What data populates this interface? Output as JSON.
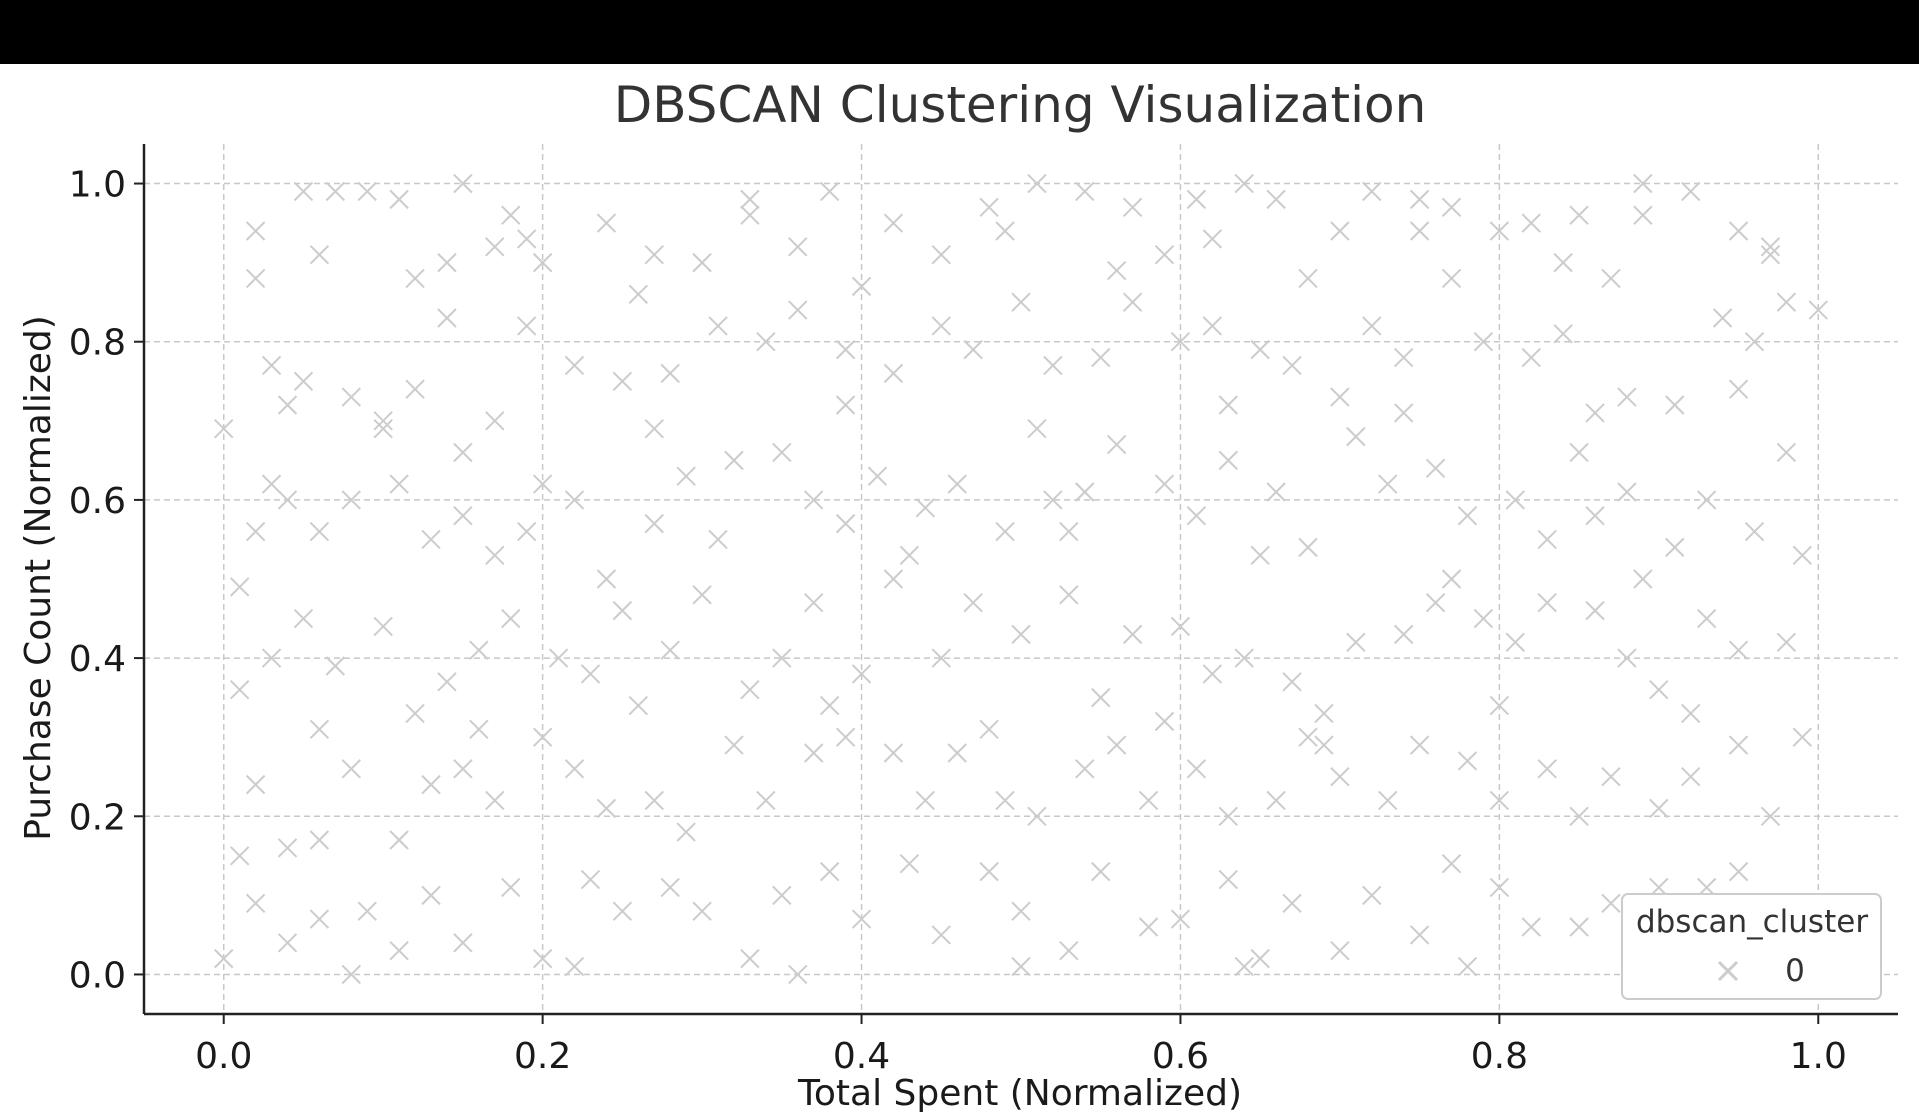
{
  "chart_data": {
    "type": "scatter",
    "title": "DBSCAN Clustering Visualization",
    "xlabel": "Total Spent (Normalized)",
    "ylabel": "Purchase Count (Normalized)",
    "xlim": [
      -0.05,
      1.05
    ],
    "ylim": [
      -0.05,
      1.05
    ],
    "xticks": [
      0.0,
      0.2,
      0.4,
      0.6,
      0.8,
      1.0
    ],
    "yticks": [
      0.0,
      0.2,
      0.4,
      0.6,
      0.8,
      1.0
    ],
    "xtick_labels": [
      "0.0",
      "0.2",
      "0.4",
      "0.6",
      "0.8",
      "1.0"
    ],
    "ytick_labels": [
      "0.0",
      "0.2",
      "0.4",
      "0.6",
      "0.8",
      "1.0"
    ],
    "grid": true,
    "marker": "x",
    "legend": {
      "title": "dbscan_cluster",
      "placement": "lower-right",
      "entries": [
        "0"
      ]
    },
    "series": [
      {
        "name": "0",
        "color": "#cccccc",
        "points": [
          [
            0.0,
            0.69
          ],
          [
            0.02,
            0.94
          ],
          [
            0.02,
            0.88
          ],
          [
            0.05,
            0.99
          ],
          [
            0.07,
            0.99
          ],
          [
            0.09,
            0.99
          ],
          [
            0.11,
            0.98
          ],
          [
            0.15,
            1.0
          ],
          [
            0.14,
            0.9
          ],
          [
            0.17,
            0.92
          ],
          [
            0.19,
            0.93
          ],
          [
            0.2,
            0.9
          ],
          [
            0.24,
            0.95
          ],
          [
            0.27,
            0.91
          ],
          [
            0.3,
            0.9
          ],
          [
            0.33,
            0.98
          ],
          [
            0.36,
            0.92
          ],
          [
            0.38,
            0.99
          ],
          [
            0.42,
            0.95
          ],
          [
            0.45,
            0.91
          ],
          [
            0.49,
            0.94
          ],
          [
            0.51,
            1.0
          ],
          [
            0.54,
            0.99
          ],
          [
            0.57,
            0.97
          ],
          [
            0.59,
            0.91
          ],
          [
            0.62,
            0.93
          ],
          [
            0.64,
            1.0
          ],
          [
            0.66,
            0.98
          ],
          [
            0.7,
            0.94
          ],
          [
            0.72,
            0.99
          ],
          [
            0.75,
            0.94
          ],
          [
            0.77,
            0.97
          ],
          [
            0.8,
            0.94
          ],
          [
            0.82,
            0.95
          ],
          [
            0.85,
            0.96
          ],
          [
            0.87,
            0.88
          ],
          [
            0.89,
            1.0
          ],
          [
            0.92,
            0.99
          ],
          [
            0.95,
            0.94
          ],
          [
            0.97,
            0.91
          ],
          [
            0.03,
            0.77
          ],
          [
            0.05,
            0.75
          ],
          [
            0.08,
            0.73
          ],
          [
            0.1,
            0.7
          ],
          [
            0.12,
            0.74
          ],
          [
            0.14,
            0.83
          ],
          [
            0.17,
            0.7
          ],
          [
            0.19,
            0.82
          ],
          [
            0.22,
            0.77
          ],
          [
            0.25,
            0.75
          ],
          [
            0.28,
            0.76
          ],
          [
            0.31,
            0.82
          ],
          [
            0.34,
            0.8
          ],
          [
            0.36,
            0.84
          ],
          [
            0.39,
            0.79
          ],
          [
            0.42,
            0.76
          ],
          [
            0.45,
            0.82
          ],
          [
            0.47,
            0.79
          ],
          [
            0.5,
            0.85
          ],
          [
            0.52,
            0.77
          ],
          [
            0.55,
            0.78
          ],
          [
            0.57,
            0.85
          ],
          [
            0.6,
            0.8
          ],
          [
            0.62,
            0.82
          ],
          [
            0.65,
            0.79
          ],
          [
            0.67,
            0.77
          ],
          [
            0.7,
            0.73
          ],
          [
            0.72,
            0.82
          ],
          [
            0.74,
            0.78
          ],
          [
            0.77,
            0.88
          ],
          [
            0.79,
            0.8
          ],
          [
            0.82,
            0.78
          ],
          [
            0.84,
            0.81
          ],
          [
            0.86,
            0.71
          ],
          [
            0.88,
            0.73
          ],
          [
            0.91,
            0.72
          ],
          [
            0.94,
            0.83
          ],
          [
            0.96,
            0.8
          ],
          [
            0.98,
            0.85
          ],
          [
            1.0,
            0.84
          ],
          [
            0.01,
            0.49
          ],
          [
            0.03,
            0.62
          ],
          [
            0.04,
            0.6
          ],
          [
            0.06,
            0.56
          ],
          [
            0.08,
            0.6
          ],
          [
            0.1,
            0.69
          ],
          [
            0.13,
            0.55
          ],
          [
            0.15,
            0.58
          ],
          [
            0.17,
            0.53
          ],
          [
            0.2,
            0.62
          ],
          [
            0.22,
            0.6
          ],
          [
            0.24,
            0.5
          ],
          [
            0.27,
            0.57
          ],
          [
            0.29,
            0.63
          ],
          [
            0.32,
            0.65
          ],
          [
            0.35,
            0.66
          ],
          [
            0.37,
            0.6
          ],
          [
            0.39,
            0.57
          ],
          [
            0.41,
            0.63
          ],
          [
            0.44,
            0.59
          ],
          [
            0.46,
            0.62
          ],
          [
            0.49,
            0.56
          ],
          [
            0.52,
            0.6
          ],
          [
            0.54,
            0.61
          ],
          [
            0.56,
            0.67
          ],
          [
            0.59,
            0.62
          ],
          [
            0.61,
            0.58
          ],
          [
            0.63,
            0.65
          ],
          [
            0.66,
            0.61
          ],
          [
            0.68,
            0.54
          ],
          [
            0.71,
            0.68
          ],
          [
            0.73,
            0.62
          ],
          [
            0.76,
            0.64
          ],
          [
            0.78,
            0.58
          ],
          [
            0.81,
            0.6
          ],
          [
            0.83,
            0.55
          ],
          [
            0.86,
            0.58
          ],
          [
            0.88,
            0.61
          ],
          [
            0.91,
            0.54
          ],
          [
            0.93,
            0.6
          ],
          [
            0.96,
            0.56
          ],
          [
            0.98,
            0.66
          ],
          [
            0.01,
            0.36
          ],
          [
            0.03,
            0.4
          ],
          [
            0.05,
            0.45
          ],
          [
            0.07,
            0.39
          ],
          [
            0.1,
            0.44
          ],
          [
            0.12,
            0.33
          ],
          [
            0.14,
            0.37
          ],
          [
            0.16,
            0.41
          ],
          [
            0.18,
            0.45
          ],
          [
            0.21,
            0.4
          ],
          [
            0.23,
            0.38
          ],
          [
            0.25,
            0.46
          ],
          [
            0.28,
            0.41
          ],
          [
            0.3,
            0.48
          ],
          [
            0.33,
            0.36
          ],
          [
            0.35,
            0.4
          ],
          [
            0.37,
            0.47
          ],
          [
            0.4,
            0.38
          ],
          [
            0.42,
            0.5
          ],
          [
            0.45,
            0.4
          ],
          [
            0.47,
            0.47
          ],
          [
            0.5,
            0.43
          ],
          [
            0.53,
            0.48
          ],
          [
            0.55,
            0.35
          ],
          [
            0.57,
            0.43
          ],
          [
            0.6,
            0.44
          ],
          [
            0.62,
            0.38
          ],
          [
            0.64,
            0.4
          ],
          [
            0.67,
            0.37
          ],
          [
            0.69,
            0.33
          ],
          [
            0.71,
            0.42
          ],
          [
            0.74,
            0.43
          ],
          [
            0.76,
            0.47
          ],
          [
            0.79,
            0.45
          ],
          [
            0.81,
            0.42
          ],
          [
            0.83,
            0.47
          ],
          [
            0.86,
            0.46
          ],
          [
            0.88,
            0.4
          ],
          [
            0.9,
            0.36
          ],
          [
            0.93,
            0.45
          ],
          [
            0.95,
            0.41
          ],
          [
            0.98,
            0.42
          ],
          [
            0.02,
            0.24
          ],
          [
            0.04,
            0.16
          ],
          [
            0.06,
            0.17
          ],
          [
            0.08,
            0.26
          ],
          [
            0.11,
            0.17
          ],
          [
            0.13,
            0.24
          ],
          [
            0.15,
            0.26
          ],
          [
            0.17,
            0.22
          ],
          [
            0.2,
            0.3
          ],
          [
            0.22,
            0.26
          ],
          [
            0.24,
            0.21
          ],
          [
            0.27,
            0.22
          ],
          [
            0.29,
            0.18
          ],
          [
            0.32,
            0.29
          ],
          [
            0.34,
            0.22
          ],
          [
            0.37,
            0.28
          ],
          [
            0.39,
            0.3
          ],
          [
            0.42,
            0.28
          ],
          [
            0.44,
            0.22
          ],
          [
            0.46,
            0.28
          ],
          [
            0.49,
            0.22
          ],
          [
            0.51,
            0.2
          ],
          [
            0.54,
            0.26
          ],
          [
            0.56,
            0.29
          ],
          [
            0.58,
            0.22
          ],
          [
            0.61,
            0.26
          ],
          [
            0.63,
            0.2
          ],
          [
            0.66,
            0.22
          ],
          [
            0.68,
            0.3
          ],
          [
            0.7,
            0.25
          ],
          [
            0.73,
            0.22
          ],
          [
            0.75,
            0.29
          ],
          [
            0.78,
            0.27
          ],
          [
            0.8,
            0.22
          ],
          [
            0.83,
            0.26
          ],
          [
            0.85,
            0.2
          ],
          [
            0.87,
            0.25
          ],
          [
            0.9,
            0.21
          ],
          [
            0.92,
            0.25
          ],
          [
            0.95,
            0.29
          ],
          [
            0.97,
            0.2
          ],
          [
            0.01,
            0.15
          ],
          [
            0.02,
            0.09
          ],
          [
            0.04,
            0.04
          ],
          [
            0.06,
            0.07
          ],
          [
            0.09,
            0.08
          ],
          [
            0.11,
            0.03
          ],
          [
            0.13,
            0.1
          ],
          [
            0.15,
            0.04
          ],
          [
            0.18,
            0.11
          ],
          [
            0.2,
            0.02
          ],
          [
            0.23,
            0.12
          ],
          [
            0.25,
            0.08
          ],
          [
            0.28,
            0.11
          ],
          [
            0.3,
            0.08
          ],
          [
            0.33,
            0.02
          ],
          [
            0.35,
            0.1
          ],
          [
            0.38,
            0.13
          ],
          [
            0.4,
            0.07
          ],
          [
            0.43,
            0.14
          ],
          [
            0.45,
            0.05
          ],
          [
            0.48,
            0.13
          ],
          [
            0.5,
            0.08
          ],
          [
            0.53,
            0.03
          ],
          [
            0.55,
            0.13
          ],
          [
            0.58,
            0.06
          ],
          [
            0.6,
            0.07
          ],
          [
            0.63,
            0.12
          ],
          [
            0.65,
            0.02
          ],
          [
            0.67,
            0.09
          ],
          [
            0.7,
            0.03
          ],
          [
            0.72,
            0.1
          ],
          [
            0.75,
            0.05
          ],
          [
            0.77,
            0.14
          ],
          [
            0.8,
            0.11
          ],
          [
            0.82,
            0.06
          ],
          [
            0.85,
            0.06
          ],
          [
            0.87,
            0.09
          ],
          [
            0.9,
            0.11
          ],
          [
            0.93,
            0.11
          ],
          [
            0.95,
            0.13
          ],
          [
            0.98,
            0.02
          ],
          [
            0.0,
            0.02
          ],
          [
            0.08,
            0.0
          ],
          [
            0.22,
            0.01
          ],
          [
            0.36,
            0.0
          ],
          [
            0.5,
            0.01
          ],
          [
            0.64,
            0.01
          ],
          [
            0.78,
            0.01
          ],
          [
            0.91,
            0.0
          ],
          [
            0.12,
            0.88
          ],
          [
            0.26,
            0.86
          ],
          [
            0.4,
            0.87
          ],
          [
            0.56,
            0.89
          ],
          [
            0.68,
            0.88
          ],
          [
            0.84,
            0.9
          ],
          [
            0.97,
            0.92
          ],
          [
            0.06,
            0.91
          ],
          [
            0.18,
            0.96
          ],
          [
            0.33,
            0.96
          ],
          [
            0.48,
            0.97
          ],
          [
            0.61,
            0.98
          ],
          [
            0.75,
            0.98
          ],
          [
            0.89,
            0.96
          ],
          [
            0.02,
            0.56
          ],
          [
            0.11,
            0.62
          ],
          [
            0.19,
            0.56
          ],
          [
            0.31,
            0.55
          ],
          [
            0.43,
            0.53
          ],
          [
            0.53,
            0.56
          ],
          [
            0.65,
            0.53
          ],
          [
            0.77,
            0.5
          ],
          [
            0.89,
            0.5
          ],
          [
            0.99,
            0.53
          ],
          [
            0.06,
            0.31
          ],
          [
            0.16,
            0.31
          ],
          [
            0.26,
            0.34
          ],
          [
            0.38,
            0.34
          ],
          [
            0.48,
            0.31
          ],
          [
            0.59,
            0.32
          ],
          [
            0.69,
            0.29
          ],
          [
            0.8,
            0.34
          ],
          [
            0.92,
            0.33
          ],
          [
            0.99,
            0.3
          ],
          [
            0.04,
            0.72
          ],
          [
            0.15,
            0.66
          ],
          [
            0.27,
            0.69
          ],
          [
            0.39,
            0.72
          ],
          [
            0.51,
            0.69
          ],
          [
            0.63,
            0.72
          ],
          [
            0.74,
            0.71
          ],
          [
            0.85,
            0.66
          ],
          [
            0.95,
            0.74
          ]
        ]
      }
    ]
  }
}
